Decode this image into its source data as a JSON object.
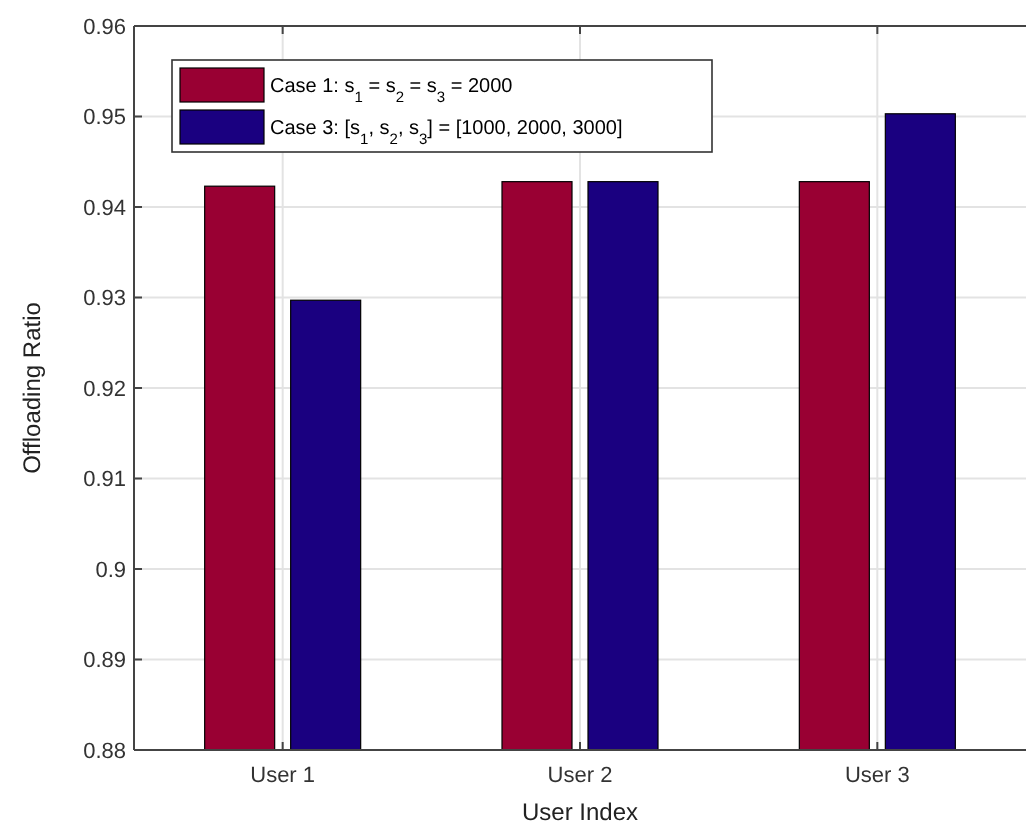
{
  "chart_data": {
    "type": "bar",
    "xlabel": "User Index",
    "ylabel": "Offloading Ratio",
    "categories": [
      "User 1",
      "User 2",
      "User 3"
    ],
    "series": [
      {
        "name": "Case 1: s$_{1}$ = s$_{2}$ = s$_{3}$ = 2000",
        "color": "#990033",
        "values": [
          0.9423,
          0.9428,
          0.9428
        ]
      },
      {
        "name": "Case 3: [s$_{1}$, s$_{2}$, s$_{3}$] = [1000, 2000, 3000]",
        "color": "#1a0080",
        "values": [
          0.9297,
          0.9428,
          0.9503
        ]
      }
    ],
    "ylim": [
      0.88,
      0.96
    ],
    "yticks": [
      0.88,
      0.89,
      0.9,
      0.91,
      0.92,
      0.93,
      0.94,
      0.95,
      0.96
    ],
    "grid": true,
    "legend": "top left"
  }
}
